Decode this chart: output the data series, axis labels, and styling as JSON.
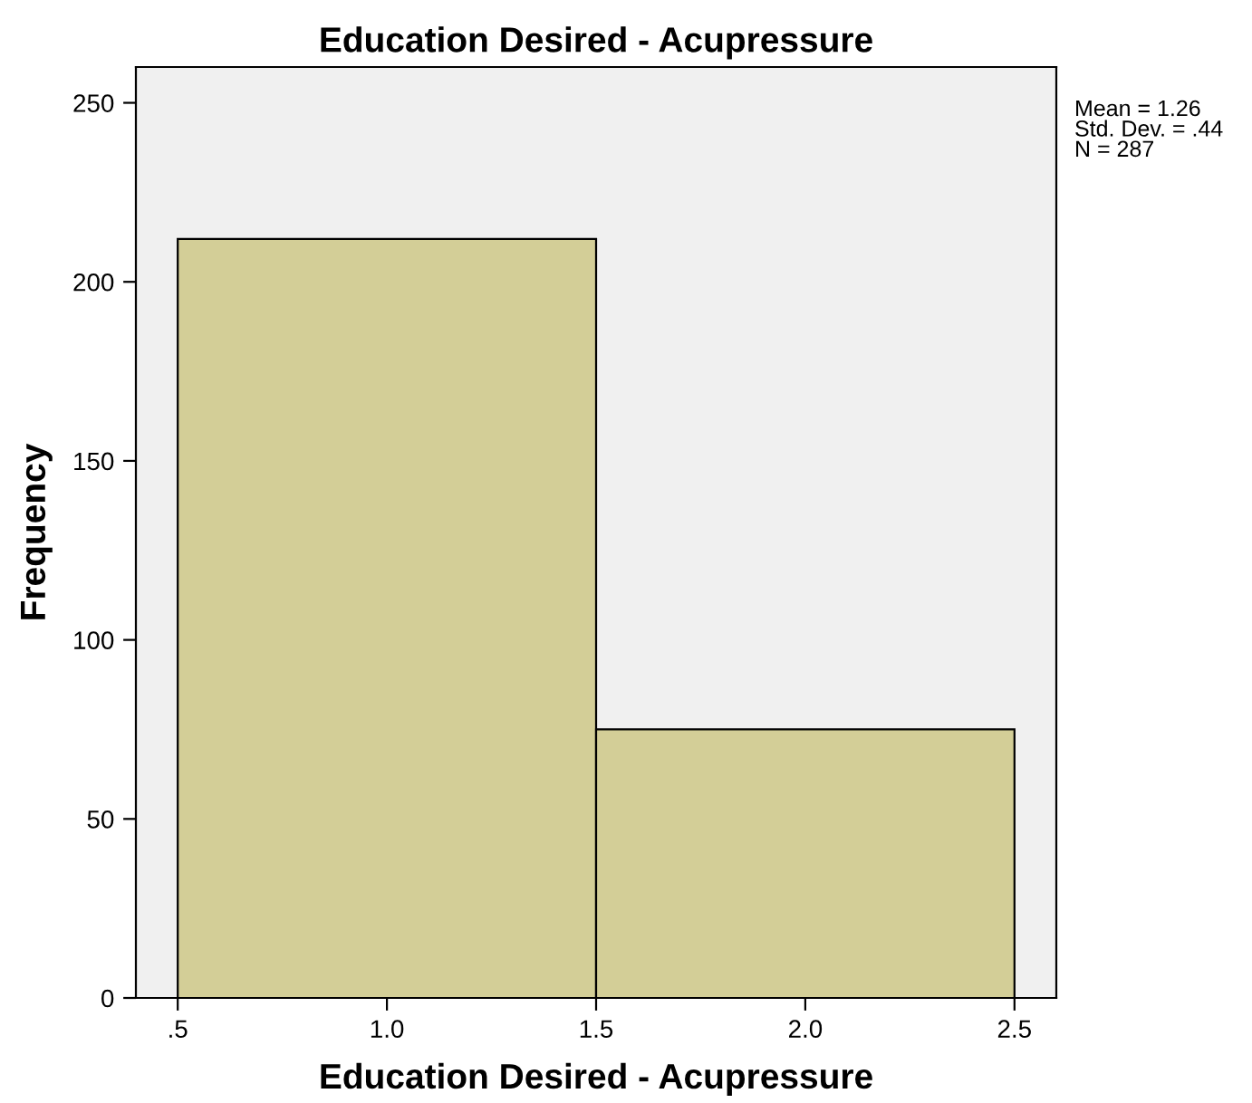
{
  "chart_data": {
    "type": "histogram",
    "title": "Education Desired - Acupressure",
    "xlabel": "Education Desired - Acupressure",
    "ylabel": "Frequency",
    "bins": [
      0.5,
      1.5,
      2.5
    ],
    "values": [
      212,
      75
    ],
    "color": "#d3ce97",
    "xlim": [
      0.4,
      2.6
    ],
    "xticks": [
      {
        "value": 0.5,
        "label": ".5"
      },
      {
        "value": 1.0,
        "label": "1.0"
      },
      {
        "value": 1.5,
        "label": "1.5"
      },
      {
        "value": 2.0,
        "label": "2.0"
      },
      {
        "value": 2.5,
        "label": "2.5"
      }
    ],
    "ylim": [
      0,
      260
    ],
    "yticks": [
      0,
      50,
      100,
      150,
      200,
      250
    ],
    "annotations": [
      "Mean = 1.26\nStd. Dev. = .44\nN = 287"
    ],
    "grid": false,
    "legend": false
  }
}
